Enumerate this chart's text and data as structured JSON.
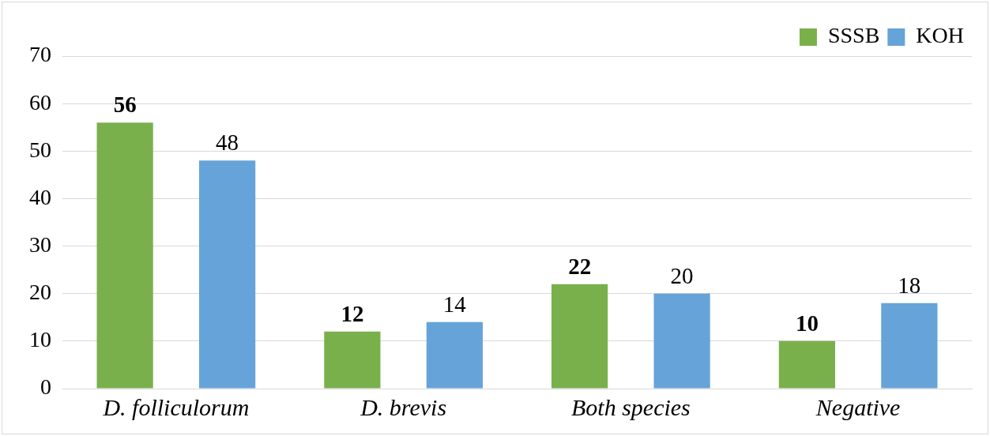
{
  "chart_data": {
    "type": "bar",
    "categories": [
      "D. folliculorum",
      "D. brevis",
      "Both species",
      "Negative"
    ],
    "series": [
      {
        "name": "SSSB",
        "color": "#7ab04c",
        "values": [
          56,
          12,
          22,
          10
        ]
      },
      {
        "name": "KOH",
        "color": "#66a3d9",
        "values": [
          48,
          14,
          20,
          18
        ]
      }
    ],
    "ylim": [
      0,
      70
    ],
    "yticks": [
      0,
      10,
      20,
      30,
      40,
      50,
      60,
      70
    ],
    "grid": "y",
    "legend": "top right",
    "data_labels": true
  }
}
